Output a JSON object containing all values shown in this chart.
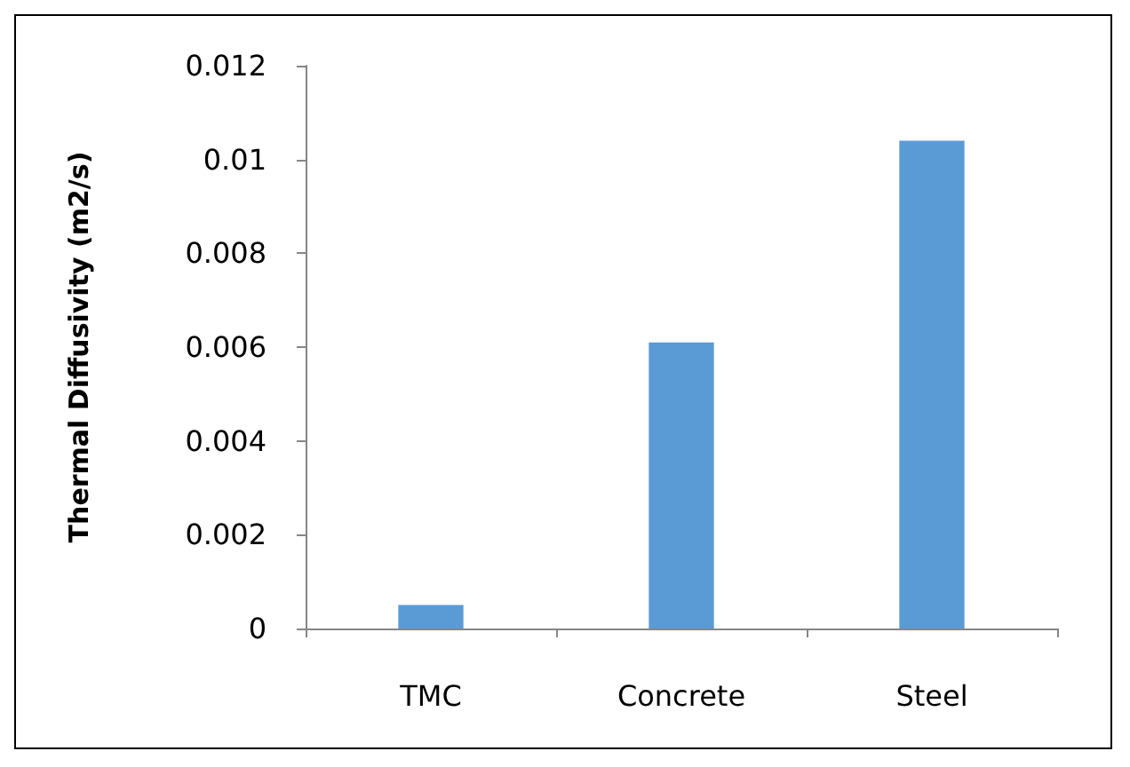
{
  "chart_data": {
    "type": "bar",
    "ylabel": "Thermal Diffusivity (m2/s)",
    "categories": [
      "TMC",
      "Concrete",
      "Steel"
    ],
    "values": [
      0.0005,
      0.0061,
      0.0104
    ],
    "color": "#5b9bd5",
    "ylim": [
      0,
      0.012
    ],
    "yticks": [
      0,
      0.002,
      0.004,
      0.006,
      0.008,
      0.01,
      0.012
    ],
    "grid": false
  }
}
